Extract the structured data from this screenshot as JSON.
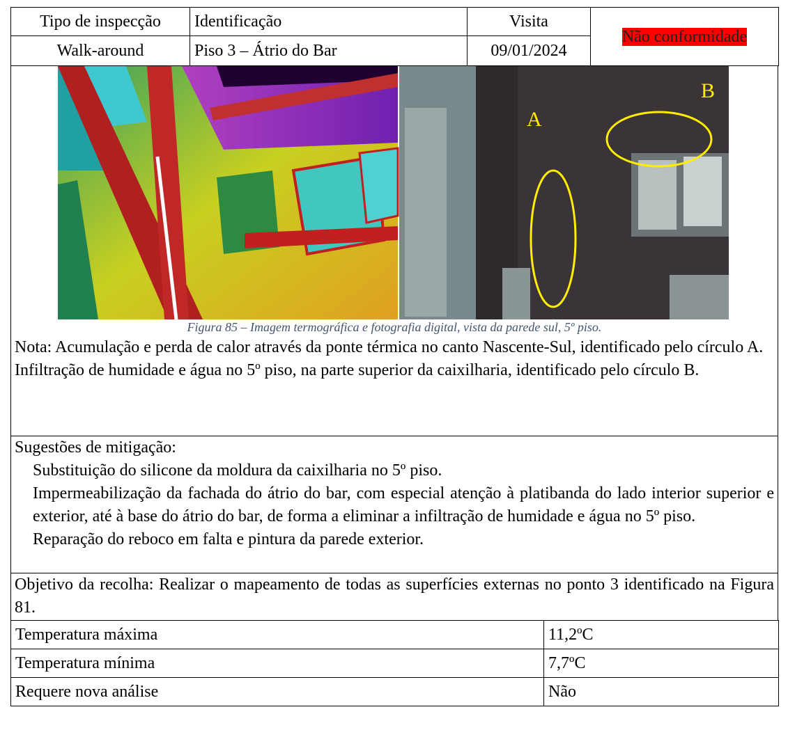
{
  "header": {
    "type_label": "Tipo de inspecção",
    "type_value": "Walk-around",
    "id_label": "Identificação",
    "id_value": "Piso 3 – Átrio do Bar",
    "visit_label": "Visita",
    "visit_value": "09/01/2024",
    "status": "Não conformidade"
  },
  "figure": {
    "labels": [
      "A",
      "B"
    ],
    "caption": "Figura 85 – Imagem termográfica e fotografia digital, vista da parede sul, 5º piso."
  },
  "notes": [
    "Nota: Acumulação e perda de calor através da ponte térmica no canto Nascente-Sul, identificado pelo círculo A.",
    "Infiltração de humidade e água no 5º piso, na parte superior da caixilharia, identificado pelo círculo B."
  ],
  "mitigation": {
    "title": "Sugestões de mitigação:",
    "items": [
      "Substituição do silicone da moldura da caixilharia no 5º piso.",
      "Impermeabilização da fachada do átrio do bar, com especial atenção à platibanda do lado interior superior e exterior, até à base do átrio do bar, de forma a eliminar a infiltração de humidade e água no 5º piso.",
      "Reparação do reboco em falta e pintura da parede exterior."
    ]
  },
  "objective": "Objetivo da recolha: Realizar o mapeamento de todas as superfícies externas no ponto 3 identificado na Figura 81.",
  "table": {
    "rows": [
      [
        "Temperatura máxima",
        "11,2ºC"
      ],
      [
        "Temperatura mínima",
        "7,7ºC"
      ],
      [
        "Requere nova análise",
        "Não"
      ]
    ]
  }
}
